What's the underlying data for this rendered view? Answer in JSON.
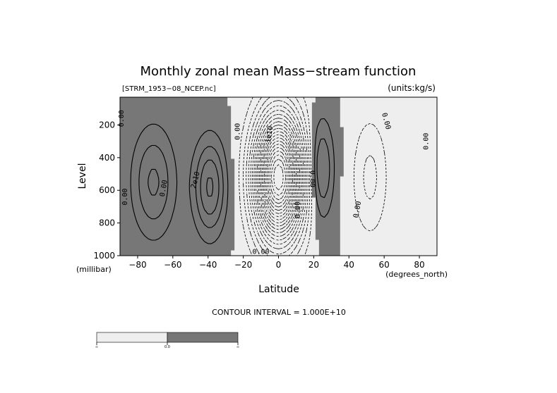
{
  "chart_data": {
    "type": "contour",
    "title": "Monthly zonal mean Mass−stream function",
    "file_label": "[STRM_1953−08_NCEP.nc]",
    "units_label": "(units:kg/s)",
    "xlabel": "Latitude",
    "ylabel": "Level",
    "x_unit": "(degrees_north)",
    "y_unit": "(millibar)",
    "xlim": [
      -90,
      90
    ],
    "ylim": [
      1000,
      30
    ],
    "x_ticks": [
      -80,
      -60,
      -40,
      -20,
      0,
      20,
      40,
      60,
      80
    ],
    "y_ticks": [
      200,
      400,
      600,
      800,
      1000
    ],
    "contour_interval_text": "CONTOUR INTERVAL = 1.000E+10",
    "colorbar_labels": [
      "∞",
      "0.0",
      "∞"
    ],
    "contour_labels": [
      "0.00",
      "0.00",
      "2e10",
      "0.00",
      "0.00",
      "0.00",
      "0.00",
      "0.00",
      "1e10",
      "0.00",
      "0.00",
      "0.00"
    ],
    "colors": {
      "negative": "#eeeeee",
      "positive": "#777777"
    },
    "cells": [
      {
        "lat": -71,
        "p_center": 550,
        "amp_e10": 3.2,
        "w": 12,
        "h": 330
      },
      {
        "lat": -39,
        "p_center": 580,
        "amp_e10": 4.2,
        "w": 9,
        "h": 290
      },
      {
        "lat": 0,
        "p_center": 520,
        "amp_e10": -22,
        "w": 13,
        "h": 360
      },
      {
        "lat": 24,
        "p_center": 470,
        "amp_e10": 3.6,
        "w": 7,
        "h": 300
      },
      {
        "lat": 52,
        "p_center": 520,
        "amp_e10": -2.3,
        "w": 10,
        "h": 360
      },
      {
        "lat": 82,
        "p_center": 430,
        "amp_e10": -0.9,
        "w": 6,
        "h": 220
      }
    ]
  }
}
